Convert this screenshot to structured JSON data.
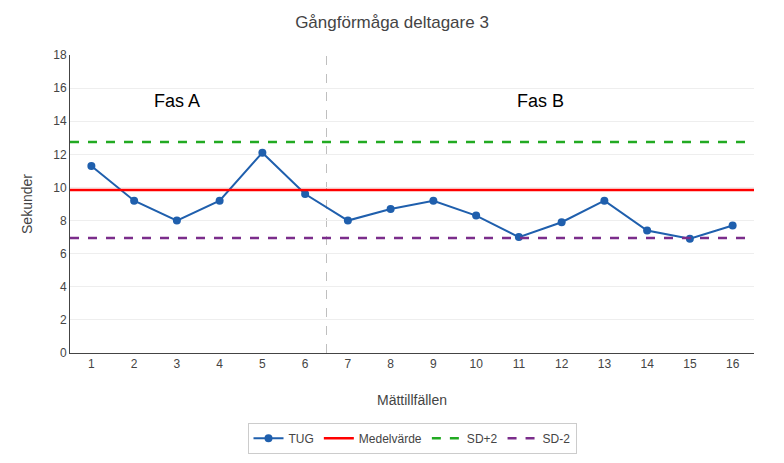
{
  "chart_data": {
    "type": "line",
    "title": "Gångförmåga deltagare 3",
    "xlabel": "Mättillfällen",
    "ylabel": "Sekunder",
    "x": [
      1,
      2,
      3,
      4,
      5,
      6,
      7,
      8,
      9,
      10,
      11,
      12,
      13,
      14,
      15,
      16
    ],
    "series": [
      {
        "name": "TUG",
        "color": "#1F5FAD",
        "marker": "circle",
        "line_style": "solid",
        "values": [
          11.3,
          9.2,
          8.0,
          9.2,
          12.1,
          9.6,
          8.0,
          8.7,
          9.2,
          8.3,
          7.0,
          7.9,
          9.2,
          7.4,
          6.9,
          7.7
        ]
      }
    ],
    "reference_lines": [
      {
        "name": "Medelvärde",
        "value": 9.85,
        "color": "#FF0000",
        "line_style": "solid"
      },
      {
        "name": "SD+2",
        "value": 12.75,
        "color": "#22AA22",
        "line_style": "dashed"
      },
      {
        "name": "SD-2",
        "value": 6.95,
        "color": "#7B2D8B",
        "line_style": "dashed"
      }
    ],
    "vertical_lines": [
      {
        "x": 6.5,
        "color": "gray",
        "line_style": "dashed"
      }
    ],
    "annotations": [
      {
        "text": "Fas A",
        "x": 3.0,
        "y": 15.2
      },
      {
        "text": "Fas B",
        "x": 11.5,
        "y": 15.2
      }
    ],
    "xlim": [
      0.5,
      16.5
    ],
    "xticks": [
      1,
      2,
      3,
      4,
      5,
      6,
      7,
      8,
      9,
      10,
      11,
      12,
      13,
      14,
      15,
      16
    ],
    "ylim": [
      0,
      18
    ],
    "yticks": [
      0,
      2,
      4,
      6,
      8,
      10,
      12,
      14,
      16,
      18
    ],
    "grid": "y",
    "legend": "bottom"
  }
}
